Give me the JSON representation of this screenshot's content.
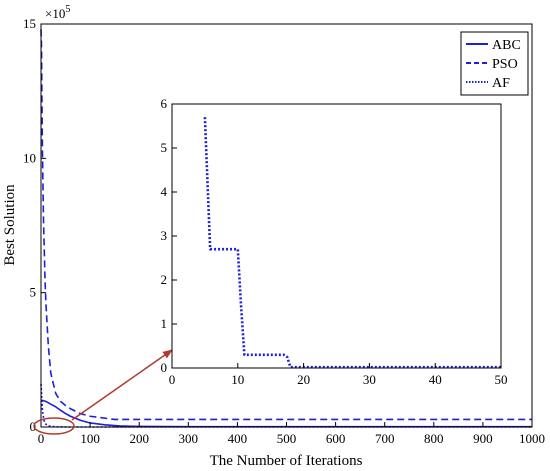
{
  "chart_data": [
    {
      "type": "line",
      "panel": "main",
      "xlabel": "The Number of Iterations",
      "ylabel": "Best Solution",
      "y_multiplier_base": "×10",
      "y_multiplier_exp": "5",
      "xlim": [
        0,
        1000
      ],
      "ylim": [
        0,
        15
      ],
      "xticks": [
        "0",
        "100",
        "200",
        "300",
        "400",
        "500",
        "600",
        "700",
        "800",
        "900",
        "1000"
      ],
      "yticks": [
        "0",
        "5",
        "10",
        "15"
      ],
      "legend_position": "top-right",
      "series": [
        {
          "name": "ABC",
          "style": "solid",
          "color": "#1f1fd6",
          "x": [
            0,
            5,
            10,
            20,
            30,
            40,
            50,
            60,
            80,
            100,
            130,
            160,
            200,
            300,
            1000
          ],
          "y": [
            1.0,
            0.98,
            0.95,
            0.85,
            0.75,
            0.62,
            0.5,
            0.4,
            0.25,
            0.15,
            0.08,
            0.04,
            0.02,
            0.01,
            0.01
          ]
        },
        {
          "name": "PSO",
          "style": "dashed",
          "color": "#1f1fd6",
          "x": [
            0,
            1,
            2,
            3,
            5,
            8,
            10,
            15,
            20,
            30,
            40,
            50,
            60,
            80,
            100,
            150,
            1000
          ],
          "y": [
            14.8,
            14.2,
            12.0,
            10.2,
            7.8,
            5.6,
            4.6,
            3.0,
            2.0,
            1.25,
            0.95,
            0.8,
            0.68,
            0.5,
            0.4,
            0.28,
            0.28
          ]
        },
        {
          "name": "AF",
          "style": "dotted",
          "color": "#1f1fd6",
          "x": [
            0,
            3,
            6,
            10,
            15,
            20,
            30,
            50,
            1000
          ],
          "y": [
            1.6,
            0.6,
            0.25,
            0.1,
            0.05,
            0.02,
            0.01,
            0.0,
            0.0
          ]
        }
      ]
    },
    {
      "type": "line",
      "panel": "inset",
      "xlim": [
        0,
        50
      ],
      "ylim": [
        0,
        6
      ],
      "xticks": [
        "0",
        "10",
        "20",
        "30",
        "40",
        "50"
      ],
      "yticks": [
        "0",
        "1",
        "2",
        "3",
        "4",
        "5",
        "6"
      ],
      "series": [
        {
          "name": "AF",
          "style": "dotted",
          "color": "#1f1fd6",
          "x": [
            5,
            5.8,
            6,
            10,
            10.5,
            11,
            17,
            17.5,
            18,
            50
          ],
          "y": [
            5.7,
            2.7,
            2.7,
            2.7,
            1.4,
            0.3,
            0.3,
            0.25,
            0.02,
            0.02
          ]
        }
      ]
    }
  ],
  "colors": {
    "lines": "#1f1fd6",
    "annotation": "#b03a2e",
    "axes": "#000000"
  }
}
